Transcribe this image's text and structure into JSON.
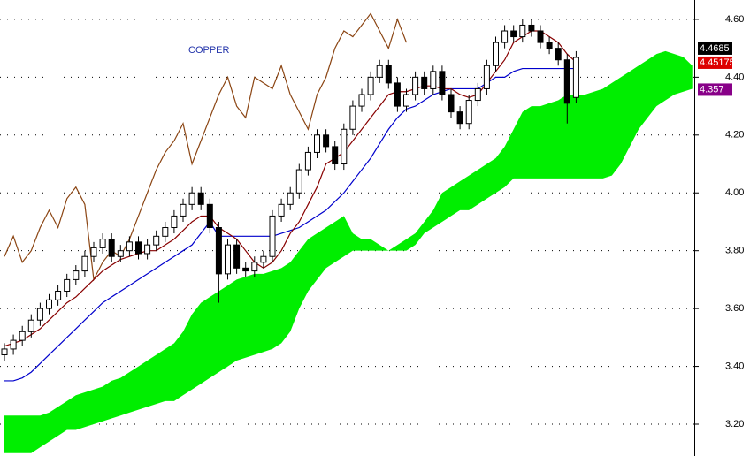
{
  "chart_data": {
    "type": "candlestick",
    "title": "COPPER",
    "title_color": "#2233aa",
    "ylim": [
      3.09,
      4.667
    ],
    "yticks": [
      {
        "value": 3.2,
        "label": "3.20"
      },
      {
        "value": 3.4,
        "label": "3.40"
      },
      {
        "value": 3.6,
        "label": "3.60"
      },
      {
        "value": 3.8,
        "label": "3.80"
      },
      {
        "value": 4.0,
        "label": "4.00"
      },
      {
        "value": 4.2,
        "label": "4.20"
      },
      {
        "value": 4.4,
        "label": "4.40"
      },
      {
        "value": 4.6,
        "label": "4.60"
      }
    ],
    "grid": true,
    "candles": {
      "open": [
        3.44,
        3.46,
        3.49,
        3.52,
        3.56,
        3.6,
        3.63,
        3.66,
        3.7,
        3.73,
        3.78,
        3.81,
        3.84,
        3.78,
        3.8,
        3.83,
        3.79,
        3.82,
        3.85,
        3.88,
        3.92,
        3.96,
        4.0,
        3.96,
        3.88,
        3.72,
        3.82,
        3.74,
        3.73,
        3.76,
        3.78,
        3.92,
        3.96,
        4.0,
        4.08,
        4.14,
        4.2,
        4.16,
        4.1,
        4.22,
        4.3,
        4.34,
        4.4,
        4.44,
        4.38,
        4.3,
        4.34,
        4.4,
        4.36,
        4.42,
        4.34,
        4.28,
        4.24,
        4.32,
        4.36,
        4.44,
        4.52,
        4.56,
        4.54,
        4.58,
        4.56,
        4.52,
        4.5,
        4.46,
        4.33
      ],
      "high": [
        3.48,
        3.51,
        3.54,
        3.58,
        3.62,
        3.65,
        3.68,
        3.72,
        3.75,
        3.8,
        3.83,
        3.86,
        3.86,
        3.82,
        3.85,
        3.85,
        3.84,
        3.87,
        3.9,
        3.94,
        3.98,
        4.02,
        4.02,
        3.98,
        3.9,
        3.84,
        3.84,
        3.76,
        3.78,
        3.8,
        3.94,
        3.98,
        4.02,
        4.1,
        4.16,
        4.22,
        4.22,
        4.18,
        4.24,
        4.32,
        4.36,
        4.42,
        4.46,
        4.46,
        4.4,
        4.36,
        4.42,
        4.42,
        4.44,
        4.44,
        4.36,
        4.3,
        4.34,
        4.38,
        4.46,
        4.54,
        4.58,
        4.58,
        4.6,
        4.6,
        4.58,
        4.54,
        4.52,
        4.48,
        4.49
      ],
      "low": [
        3.42,
        3.44,
        3.47,
        3.5,
        3.54,
        3.58,
        3.61,
        3.64,
        3.68,
        3.71,
        3.76,
        3.79,
        3.76,
        3.76,
        3.78,
        3.77,
        3.77,
        3.8,
        3.83,
        3.86,
        3.9,
        3.94,
        3.94,
        3.86,
        3.62,
        3.7,
        3.72,
        3.71,
        3.71,
        3.74,
        3.76,
        3.9,
        3.94,
        3.98,
        4.06,
        4.12,
        4.14,
        4.08,
        4.08,
        4.2,
        4.28,
        4.32,
        4.38,
        4.36,
        4.28,
        4.28,
        4.32,
        4.34,
        4.34,
        4.32,
        4.26,
        4.22,
        4.22,
        4.3,
        4.34,
        4.42,
        4.5,
        4.52,
        4.52,
        4.54,
        4.5,
        4.48,
        4.44,
        4.24,
        4.31
      ],
      "close": [
        3.46,
        3.49,
        3.52,
        3.56,
        3.6,
        3.63,
        3.66,
        3.7,
        3.73,
        3.78,
        3.81,
        3.84,
        3.78,
        3.8,
        3.83,
        3.79,
        3.82,
        3.85,
        3.88,
        3.92,
        3.96,
        4.0,
        3.96,
        3.88,
        3.72,
        3.82,
        3.74,
        3.73,
        3.76,
        3.78,
        3.92,
        3.96,
        4.0,
        4.08,
        4.14,
        4.2,
        4.16,
        4.1,
        4.22,
        4.3,
        4.34,
        4.4,
        4.44,
        4.38,
        4.3,
        4.34,
        4.4,
        4.36,
        4.42,
        4.34,
        4.28,
        4.24,
        4.32,
        4.36,
        4.44,
        4.52,
        4.56,
        4.54,
        4.58,
        4.56,
        4.52,
        4.5,
        4.46,
        4.31,
        4.4685
      ]
    },
    "cloud": {
      "color": "#00ee00",
      "span_a": [
        3.23,
        3.23,
        3.23,
        3.23,
        3.23,
        3.24,
        3.26,
        3.28,
        3.3,
        3.31,
        3.32,
        3.33,
        3.35,
        3.36,
        3.38,
        3.4,
        3.42,
        3.44,
        3.46,
        3.48,
        3.52,
        3.58,
        3.62,
        3.64,
        3.66,
        3.68,
        3.7,
        3.71,
        3.72,
        3.72,
        3.73,
        3.74,
        3.76,
        3.8,
        3.84,
        3.86,
        3.88,
        3.9,
        3.92,
        3.86,
        3.84,
        3.84,
        3.82,
        3.8,
        3.82,
        3.84,
        3.86,
        3.9,
        3.94,
        4.0,
        4.02,
        4.04,
        4.06,
        4.08,
        4.1,
        4.12,
        4.16,
        4.22,
        4.28,
        4.3,
        4.3,
        4.31,
        4.32,
        4.34,
        4.34,
        4.34,
        4.35,
        4.36,
        4.38,
        4.4,
        4.42,
        4.44,
        4.46,
        4.48,
        4.49,
        4.48,
        4.47,
        4.44
      ],
      "span_b": [
        3.1,
        3.1,
        3.1,
        3.1,
        3.12,
        3.14,
        3.16,
        3.18,
        3.18,
        3.19,
        3.2,
        3.21,
        3.22,
        3.23,
        3.24,
        3.25,
        3.26,
        3.27,
        3.28,
        3.28,
        3.3,
        3.32,
        3.34,
        3.36,
        3.38,
        3.4,
        3.42,
        3.43,
        3.44,
        3.45,
        3.46,
        3.48,
        3.52,
        3.6,
        3.66,
        3.7,
        3.74,
        3.76,
        3.78,
        3.8,
        3.8,
        3.8,
        3.8,
        3.8,
        3.8,
        3.8,
        3.82,
        3.86,
        3.88,
        3.9,
        3.92,
        3.94,
        3.94,
        3.96,
        3.98,
        4.0,
        4.02,
        4.05,
        4.05,
        4.05,
        4.05,
        4.05,
        4.05,
        4.05,
        4.05,
        4.05,
        4.05,
        4.05,
        4.06,
        4.1,
        4.16,
        4.22,
        4.26,
        4.3,
        4.32,
        4.34,
        4.35,
        4.36
      ]
    },
    "lines": [
      {
        "color": "#8b4513",
        "values": [
          3.78,
          3.85,
          3.76,
          3.8,
          3.88,
          3.94,
          3.88,
          3.98,
          4.02,
          3.96,
          3.7,
          3.76,
          3.8,
          3.78,
          3.84,
          3.92,
          4.0,
          4.08,
          4.14,
          4.18,
          4.24,
          4.1,
          4.18,
          4.26,
          4.34,
          4.4,
          4.3,
          4.26,
          4.4,
          4.38,
          4.36,
          4.44,
          4.34,
          4.28,
          4.22,
          4.34,
          4.4,
          4.5,
          4.56,
          4.54,
          4.58,
          4.62,
          4.56,
          4.5,
          4.6,
          4.52,
          null,
          null,
          null,
          null,
          null,
          null,
          null,
          null,
          null,
          null,
          null,
          null,
          null,
          null,
          null,
          null,
          null,
          null,
          null
        ]
      },
      {
        "color": "#0000cc",
        "values": [
          3.35,
          3.35,
          3.36,
          3.38,
          3.41,
          3.44,
          3.47,
          3.5,
          3.53,
          3.56,
          3.59,
          3.62,
          3.64,
          3.66,
          3.68,
          3.7,
          3.72,
          3.74,
          3.76,
          3.78,
          3.8,
          3.82,
          3.86,
          3.9,
          3.85,
          3.85,
          3.85,
          3.85,
          3.85,
          3.85,
          3.85,
          3.86,
          3.87,
          3.88,
          3.9,
          3.92,
          3.94,
          3.97,
          4.0,
          4.04,
          4.08,
          4.12,
          4.17,
          4.22,
          4.26,
          4.29,
          4.3,
          4.32,
          4.34,
          4.35,
          4.36,
          4.36,
          4.36,
          4.36,
          4.38,
          4.4,
          4.4,
          4.42,
          4.43,
          4.43,
          4.43,
          4.43,
          4.43,
          4.43,
          4.43
        ]
      },
      {
        "color": "#880000",
        "values": [
          3.47,
          3.48,
          3.49,
          3.51,
          3.53,
          3.56,
          3.59,
          3.62,
          3.64,
          3.67,
          3.7,
          3.73,
          3.75,
          3.77,
          3.78,
          3.79,
          3.8,
          3.8,
          3.82,
          3.84,
          3.87,
          3.9,
          3.92,
          3.92,
          3.88,
          3.86,
          3.84,
          3.8,
          3.76,
          3.74,
          3.76,
          3.8,
          3.86,
          3.9,
          3.96,
          4.02,
          4.1,
          4.12,
          4.14,
          4.18,
          4.22,
          4.26,
          4.3,
          4.34,
          4.35,
          4.35,
          4.36,
          4.37,
          4.37,
          4.36,
          4.36,
          4.34,
          4.33,
          4.34,
          4.38,
          4.42,
          4.46,
          4.52,
          4.54,
          4.56,
          4.56,
          4.54,
          4.52,
          4.48,
          4.45175
        ]
      }
    ],
    "price_labels": [
      {
        "value": 4.4685,
        "color": "#000000"
      },
      {
        "value": 4.45175,
        "color": "#dd0000"
      },
      {
        "value": 4.357,
        "color": "#880088"
      }
    ]
  }
}
